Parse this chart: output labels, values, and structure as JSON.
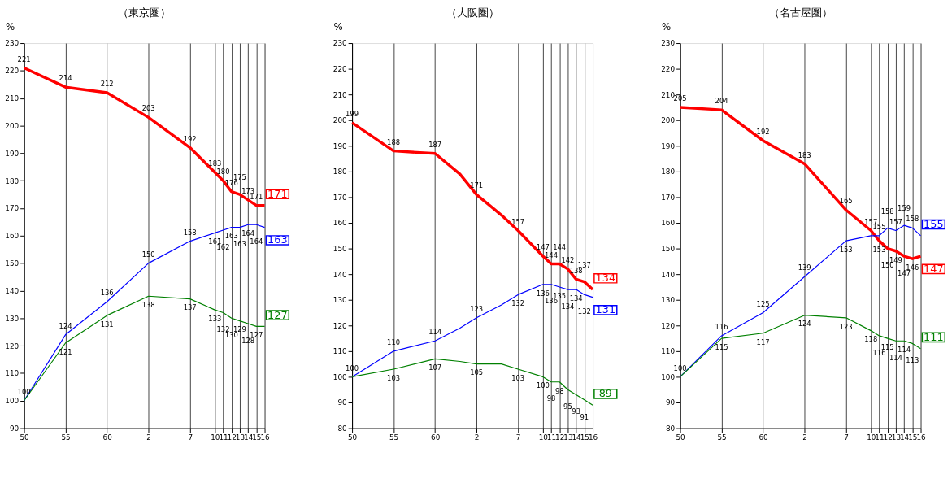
{
  "chart_data": [
    {
      "type": "line",
      "title": "（東京圏）",
      "ylabel": "%",
      "categories": [
        "50",
        null,
        null,
        null,
        null,
        "55",
        null,
        null,
        null,
        null,
        "60",
        null,
        null,
        null,
        null,
        "2",
        null,
        null,
        null,
        null,
        "7",
        null,
        null,
        "10",
        "11",
        "12",
        "13",
        "14",
        "15",
        "16"
      ],
      "ylim": [
        90,
        230
      ],
      "yticks": [
        90,
        100,
        110,
        120,
        130,
        140,
        150,
        160,
        170,
        180,
        190,
        200,
        210,
        220,
        230
      ],
      "grid": "x",
      "series": [
        {
          "color": "#ff0000",
          "values": [
            221,
            null,
            null,
            null,
            null,
            214,
            null,
            null,
            null,
            null,
            212,
            null,
            null,
            null,
            null,
            203,
            null,
            null,
            null,
            null,
            192,
            null,
            null,
            183,
            180,
            176,
            175,
            173,
            171,
            171
          ],
          "value_labels": [
            "221",
            null,
            null,
            null,
            null,
            "214",
            null,
            null,
            null,
            null,
            "212",
            null,
            null,
            null,
            null,
            "203",
            null,
            null,
            null,
            null,
            "192",
            null,
            null,
            "183",
            "180",
            "176",
            "175",
            "173",
            "171",
            "171"
          ]
        },
        {
          "color": "#0000ff",
          "values": [
            100,
            null,
            null,
            null,
            null,
            124,
            null,
            null,
            null,
            null,
            136,
            null,
            null,
            null,
            null,
            150,
            null,
            null,
            null,
            null,
            158,
            null,
            null,
            161,
            162,
            163,
            163,
            164,
            164,
            163
          ],
          "value_labels": [
            null,
            null,
            null,
            null,
            null,
            "124",
            null,
            null,
            null,
            null,
            "136",
            null,
            null,
            null,
            null,
            "150",
            null,
            null,
            null,
            null,
            "158",
            null,
            null,
            "161",
            "162",
            "163",
            "163",
            "164",
            "164",
            "163"
          ]
        },
        {
          "color": "#008000",
          "values": [
            100,
            null,
            null,
            null,
            null,
            121,
            null,
            null,
            null,
            null,
            131,
            null,
            null,
            null,
            null,
            138,
            null,
            null,
            null,
            null,
            137,
            null,
            null,
            133,
            132,
            130,
            129,
            128,
            127,
            127
          ],
          "value_labels": [
            "100",
            null,
            null,
            null,
            null,
            "121",
            null,
            null,
            null,
            null,
            "131",
            null,
            null,
            null,
            null,
            "138",
            null,
            null,
            null,
            null,
            "137",
            null,
            null,
            "133",
            "132",
            "130",
            "129",
            "128",
            "127",
            "127"
          ]
        }
      ]
    },
    {
      "type": "line",
      "title": "（大阪圏）",
      "ylabel": "%",
      "categories": [
        "50",
        null,
        null,
        null,
        null,
        "55",
        null,
        null,
        null,
        null,
        "60",
        null,
        null,
        null,
        null,
        "2",
        null,
        null,
        null,
        null,
        "7",
        null,
        null,
        "10",
        "11",
        "12",
        "13",
        "14",
        "15",
        "16"
      ],
      "ylim": [
        80,
        230
      ],
      "yticks": [
        80,
        90,
        100,
        110,
        120,
        130,
        140,
        150,
        160,
        170,
        180,
        190,
        200,
        210,
        220,
        230
      ],
      "grid": "x",
      "series": [
        {
          "color": "#ff0000",
          "values": [
            199,
            null,
            null,
            null,
            null,
            188,
            null,
            null,
            null,
            null,
            187,
            null,
            null,
            179,
            null,
            171,
            null,
            null,
            163,
            null,
            157,
            null,
            null,
            147,
            144,
            144,
            142,
            138,
            137,
            134
          ],
          "value_labels": [
            "199",
            null,
            null,
            null,
            null,
            "188",
            null,
            null,
            null,
            null,
            "187",
            null,
            null,
            null,
            null,
            "171",
            null,
            null,
            null,
            null,
            "157",
            null,
            null,
            "147",
            "144",
            "144",
            "142",
            "138",
            "137",
            "134"
          ]
        },
        {
          "color": "#0000ff",
          "values": [
            100,
            null,
            null,
            null,
            null,
            110,
            null,
            null,
            null,
            null,
            114,
            null,
            null,
            119,
            null,
            123,
            null,
            null,
            128,
            null,
            132,
            null,
            null,
            136,
            136,
            135,
            134,
            134,
            132,
            131
          ],
          "value_labels": [
            null,
            null,
            null,
            null,
            null,
            "110",
            null,
            null,
            null,
            null,
            "114",
            null,
            null,
            null,
            null,
            "123",
            null,
            null,
            null,
            null,
            "132",
            null,
            null,
            "136",
            "136",
            "135",
            "134",
            "134",
            "132",
            "131"
          ]
        },
        {
          "color": "#008000",
          "values": [
            100,
            null,
            null,
            null,
            null,
            103,
            null,
            null,
            null,
            null,
            107,
            null,
            null,
            106,
            null,
            105,
            null,
            null,
            105,
            null,
            103,
            null,
            null,
            100,
            98,
            98,
            95,
            93,
            91,
            89
          ],
          "value_labels": [
            "100",
            null,
            null,
            null,
            null,
            "103",
            null,
            null,
            null,
            null,
            "107",
            null,
            null,
            null,
            null,
            "105",
            null,
            null,
            null,
            null,
            "103",
            null,
            null,
            "100",
            "98",
            "98",
            "95",
            "93",
            "91",
            "89"
          ]
        }
      ]
    },
    {
      "type": "line",
      "title": "（名古屋圏）",
      "ylabel": "%",
      "categories": [
        "50",
        null,
        null,
        null,
        null,
        "55",
        null,
        null,
        null,
        null,
        "60",
        null,
        null,
        null,
        null,
        "2",
        null,
        null,
        null,
        null,
        "7",
        null,
        null,
        "10",
        "11",
        "12",
        "13",
        "14",
        "15",
        "16"
      ],
      "ylim": [
        80,
        230
      ],
      "yticks": [
        80,
        90,
        100,
        110,
        120,
        130,
        140,
        150,
        160,
        170,
        180,
        190,
        200,
        210,
        220,
        230
      ],
      "grid": "x",
      "series": [
        {
          "color": "#ff0000",
          "values": [
            205,
            null,
            null,
            null,
            null,
            204,
            null,
            null,
            null,
            null,
            192,
            null,
            null,
            null,
            null,
            183,
            null,
            null,
            null,
            null,
            165,
            null,
            null,
            157,
            153,
            150,
            149,
            147,
            146,
            147
          ],
          "value_labels": [
            "205",
            null,
            null,
            null,
            null,
            "204",
            null,
            null,
            null,
            null,
            "192",
            null,
            null,
            null,
            null,
            "183",
            null,
            null,
            null,
            null,
            "165",
            null,
            null,
            "157",
            "153",
            "150",
            "149",
            "147",
            "146",
            "147"
          ]
        },
        {
          "color": "#0000ff",
          "values": [
            100,
            null,
            null,
            null,
            null,
            116,
            null,
            null,
            null,
            null,
            125,
            null,
            null,
            null,
            null,
            139,
            null,
            null,
            null,
            null,
            153,
            null,
            null,
            155,
            155,
            158,
            157,
            159,
            158,
            155
          ],
          "value_labels": [
            null,
            null,
            null,
            null,
            null,
            "116",
            null,
            null,
            null,
            null,
            "125",
            null,
            null,
            null,
            null,
            "139",
            null,
            null,
            null,
            null,
            "153",
            null,
            null,
            null,
            "155",
            "158",
            "157",
            "159",
            "158",
            "155"
          ]
        },
        {
          "color": "#008000",
          "values": [
            100,
            null,
            null,
            null,
            null,
            115,
            null,
            null,
            null,
            null,
            117,
            null,
            null,
            null,
            null,
            124,
            null,
            null,
            null,
            null,
            123,
            null,
            null,
            118,
            116,
            115,
            114,
            114,
            113,
            111
          ],
          "value_labels": [
            "100",
            null,
            null,
            null,
            null,
            "115",
            null,
            null,
            null,
            null,
            "117",
            null,
            null,
            null,
            null,
            "124",
            null,
            null,
            null,
            null,
            "123",
            null,
            null,
            "118",
            "116",
            "115",
            "114",
            "114",
            "113",
            "111"
          ]
        }
      ]
    }
  ]
}
